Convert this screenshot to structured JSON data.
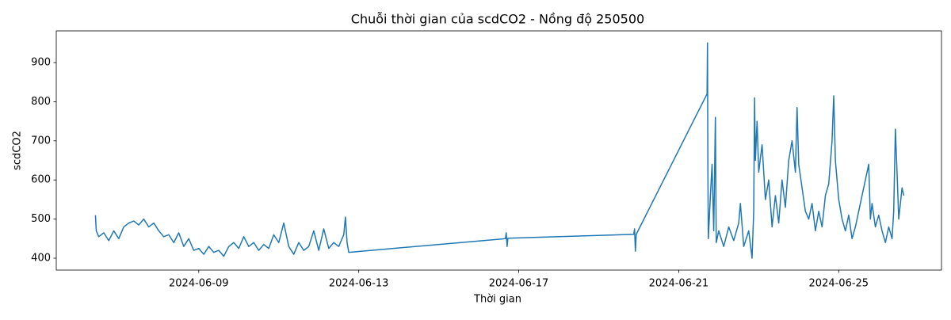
{
  "chart_data": {
    "type": "line",
    "title": "Chuỗi thời gian của scdCO2 - Nồng độ 250500",
    "x_label": "Thời gian",
    "y_label": "scdCO2",
    "xlim": [
      "2024-06-05 10:30",
      "2024-06-27 13:40"
    ],
    "xticks": [
      "2024-06-09",
      "2024-06-13",
      "2024-06-17",
      "2024-06-21",
      "2024-06-25"
    ],
    "ylim": [
      369.6,
      981
    ],
    "yticks": [
      400,
      500,
      600,
      700,
      800,
      900
    ],
    "grid": false,
    "series": [
      {
        "name": "scdCO2",
        "color": "#1f77b4",
        "x": [
          "2024-06-06 10:00",
          "2024-06-06 10:30",
          "2024-06-06 12:00",
          "2024-06-06 15:00",
          "2024-06-06 18:00",
          "2024-06-06 21:00",
          "2024-06-07 00:00",
          "2024-06-07 03:00",
          "2024-06-07 06:00",
          "2024-06-07 09:00",
          "2024-06-07 12:00",
          "2024-06-07 15:00",
          "2024-06-07 18:00",
          "2024-06-07 21:00",
          "2024-06-08 00:00",
          "2024-06-08 03:00",
          "2024-06-08 06:00",
          "2024-06-08 09:00",
          "2024-06-08 12:00",
          "2024-06-08 15:00",
          "2024-06-08 18:00",
          "2024-06-08 21:00",
          "2024-06-09 00:00",
          "2024-06-09 03:00",
          "2024-06-09 06:00",
          "2024-06-09 09:00",
          "2024-06-09 12:00",
          "2024-06-09 15:00",
          "2024-06-09 18:00",
          "2024-06-09 21:00",
          "2024-06-10 00:00",
          "2024-06-10 03:00",
          "2024-06-10 06:00",
          "2024-06-10 09:00",
          "2024-06-10 12:00",
          "2024-06-10 15:00",
          "2024-06-10 18:00",
          "2024-06-10 21:00",
          "2024-06-11 00:00",
          "2024-06-11 03:00",
          "2024-06-11 06:00",
          "2024-06-11 09:00",
          "2024-06-11 12:00",
          "2024-06-11 15:00",
          "2024-06-11 18:00",
          "2024-06-11 21:00",
          "2024-06-12 00:00",
          "2024-06-12 03:00",
          "2024-06-12 06:00",
          "2024-06-12 09:00",
          "2024-06-12 12:00",
          "2024-06-12 15:00",
          "2024-06-12 16:00",
          "2024-06-12 17:00",
          "2024-06-12 18:00",
          "2024-06-16 16:00",
          "2024-06-16 16:30",
          "2024-06-16 17:00",
          "2024-06-16 17:30",
          "2024-06-19 21:00",
          "2024-06-19 21:30",
          "2024-06-19 22:00",
          "2024-06-19 22:30",
          "2024-06-21 17:00",
          "2024-06-21 17:15",
          "2024-06-21 17:30",
          "2024-06-21 17:45",
          "2024-06-21 19:00",
          "2024-06-21 20:00",
          "2024-06-21 21:00",
          "2024-06-21 22:00",
          "2024-06-21 22:30",
          "2024-06-22 00:00",
          "2024-06-22 03:00",
          "2024-06-22 06:00",
          "2024-06-22 09:00",
          "2024-06-22 12:00",
          "2024-06-22 13:00",
          "2024-06-22 15:00",
          "2024-06-22 18:00",
          "2024-06-22 20:00",
          "2024-06-22 21:00",
          "2024-06-22 21:30",
          "2024-06-22 22:00",
          "2024-06-22 23:00",
          "2024-06-23 00:00",
          "2024-06-23 02:00",
          "2024-06-23 04:00",
          "2024-06-23 06:00",
          "2024-06-23 08:00",
          "2024-06-23 10:00",
          "2024-06-23 12:00",
          "2024-06-23 14:00",
          "2024-06-23 16:00",
          "2024-06-23 18:00",
          "2024-06-23 20:00",
          "2024-06-23 22:00",
          "2024-06-23 23:00",
          "2024-06-24 00:00",
          "2024-06-24 02:00",
          "2024-06-24 04:00",
          "2024-06-24 06:00",
          "2024-06-24 08:00",
          "2024-06-24 10:00",
          "2024-06-24 12:00",
          "2024-06-24 14:00",
          "2024-06-24 16:00",
          "2024-06-24 18:00",
          "2024-06-24 20:00",
          "2024-06-24 21:00",
          "2024-06-24 22:00",
          "2024-06-25 00:00",
          "2024-06-25 02:00",
          "2024-06-25 04:00",
          "2024-06-25 06:00",
          "2024-06-25 08:00",
          "2024-06-25 10:00",
          "2024-06-25 12:00",
          "2024-06-25 14:00",
          "2024-06-25 16:00",
          "2024-06-25 18:00",
          "2024-06-25 19:00",
          "2024-06-25 20:00",
          "2024-06-25 22:00",
          "2024-06-26 00:00",
          "2024-06-26 02:00",
          "2024-06-26 04:00",
          "2024-06-26 06:00",
          "2024-06-26 08:00",
          "2024-06-26 09:00",
          "2024-06-26 10:00",
          "2024-06-26 11:00",
          "2024-06-26 12:00",
          "2024-06-26 14:00",
          "2024-06-26 15:00"
        ],
        "values": [
          510,
          470,
          455,
          465,
          445,
          470,
          450,
          480,
          490,
          495,
          485,
          500,
          480,
          490,
          470,
          455,
          460,
          440,
          465,
          430,
          450,
          420,
          425,
          410,
          430,
          415,
          420,
          405,
          430,
          440,
          425,
          455,
          430,
          440,
          420,
          435,
          425,
          460,
          440,
          490,
          430,
          410,
          440,
          420,
          430,
          470,
          420,
          475,
          425,
          440,
          430,
          460,
          505,
          440,
          415,
          450,
          465,
          430,
          451,
          461,
          475,
          418,
          461,
          820,
          950,
          630,
          450,
          560,
          640,
          470,
          760,
          440,
          470,
          430,
          480,
          445,
          490,
          540,
          430,
          470,
          400,
          520,
          810,
          650,
          750,
          620,
          690,
          550,
          600,
          480,
          560,
          490,
          600,
          530,
          650,
          700,
          620,
          785,
          640,
          580,
          520,
          500,
          540,
          470,
          520,
          480,
          560,
          590,
          700,
          815,
          650,
          550,
          500,
          470,
          510,
          450,
          480,
          520,
          560,
          600,
          640,
          500,
          540,
          480,
          510,
          470,
          440,
          480,
          450,
          520,
          730,
          620,
          500,
          580,
          560
        ]
      }
    ]
  }
}
